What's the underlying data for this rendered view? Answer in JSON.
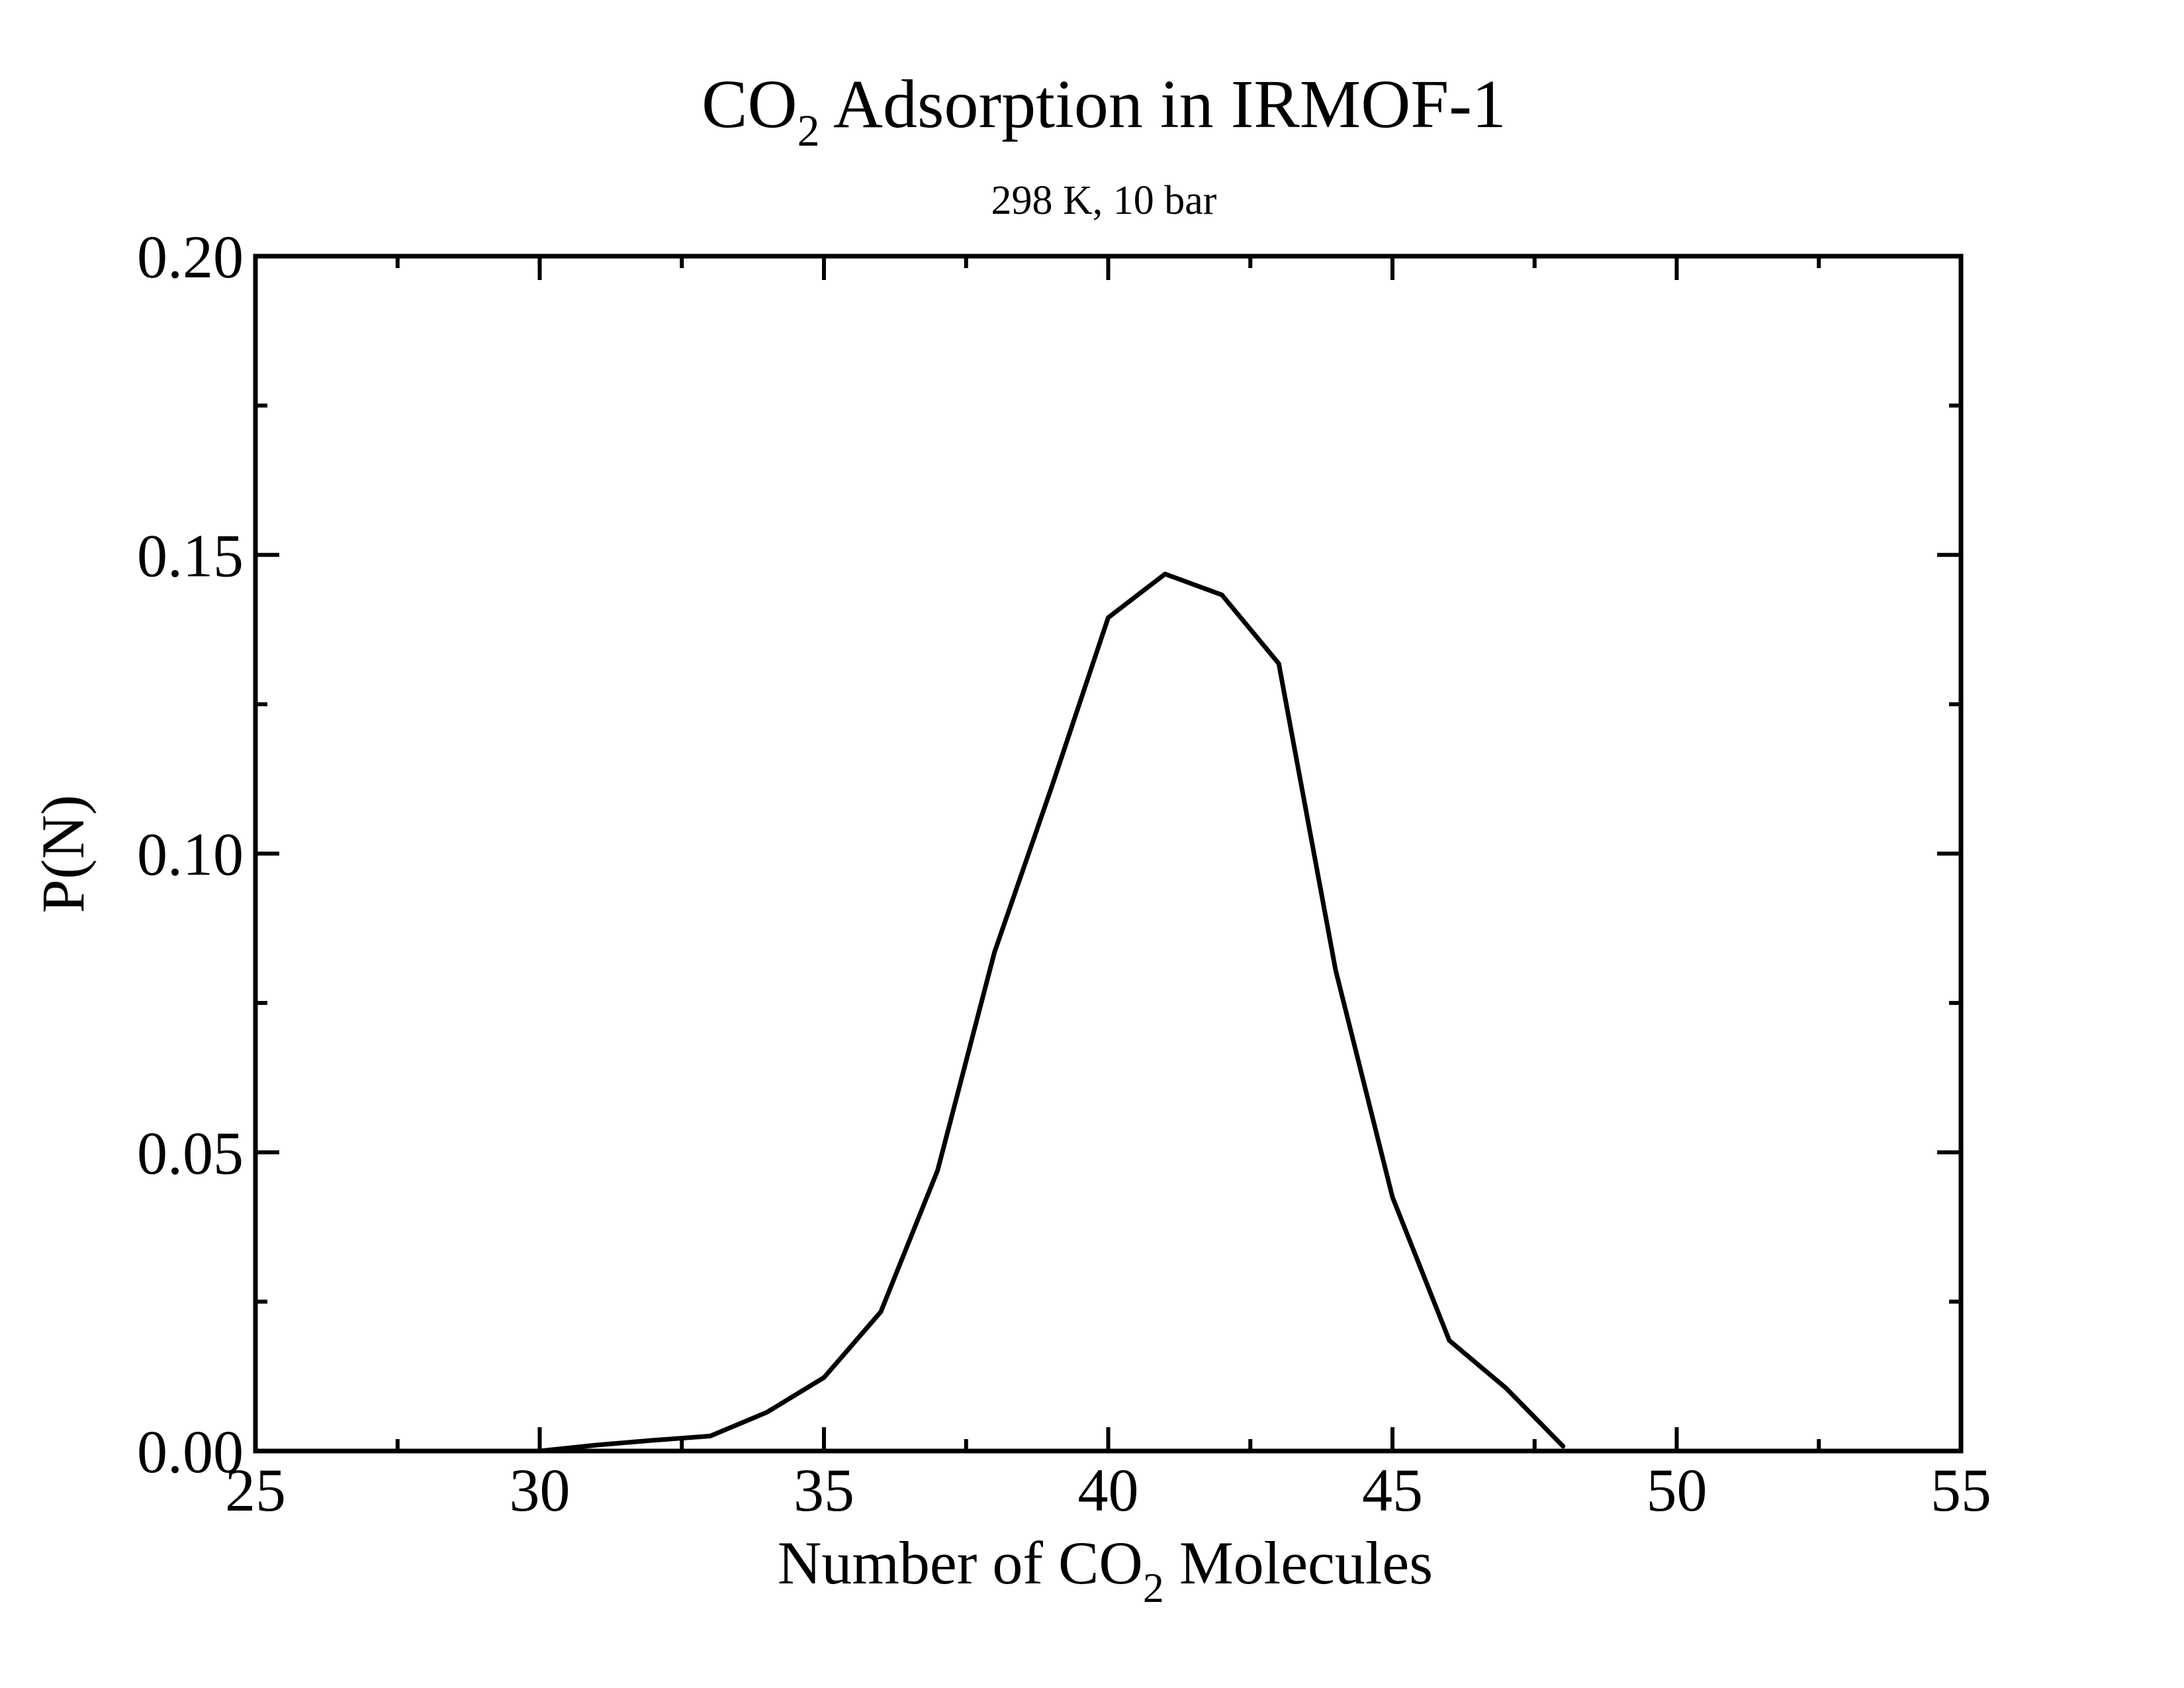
{
  "chart_data": {
    "type": "line",
    "title": {
      "main": "CO",
      "sub": "2",
      "rest": " Adsorption in IRMOF-1"
    },
    "subtitle": "298 K, 10 bar",
    "xlabel": {
      "main": "Number of CO",
      "sub": "2",
      "rest": " Molecules"
    },
    "ylabel": "P(N)",
    "xlim": [
      25,
      55
    ],
    "ylim": [
      0,
      0.2
    ],
    "x_major_ticks": [
      25,
      30,
      35,
      40,
      45,
      50,
      55
    ],
    "x_minor_ticks": [
      27.5,
      32.5,
      37.5,
      42.5,
      47.5,
      52.5
    ],
    "x_tick_labels": [
      "25",
      "30",
      "35",
      "40",
      "45",
      "50",
      "55"
    ],
    "y_major_ticks": [
      0,
      0.05,
      0.1,
      0.15,
      0.2
    ],
    "y_minor_ticks": [
      0.025,
      0.075,
      0.125,
      0.175
    ],
    "y_tick_labels": [
      "0.00",
      "0.05",
      "0.10",
      "0.15",
      "0.20"
    ],
    "grid": false,
    "line_color": "#000000",
    "series": [
      {
        "x": [
          30,
          31,
          32,
          33,
          34,
          35,
          36,
          37,
          38,
          39,
          40,
          41,
          42,
          43,
          44,
          45,
          46,
          47,
          48
        ],
        "y": [
          0.0,
          0.001,
          0.0018,
          0.0025,
          0.0065,
          0.0123,
          0.0233,
          0.047,
          0.0835,
          0.111,
          0.1395,
          0.1468,
          0.1433,
          0.1318,
          0.0805,
          0.0425,
          0.0185,
          0.0105,
          0.0008
        ]
      }
    ]
  }
}
